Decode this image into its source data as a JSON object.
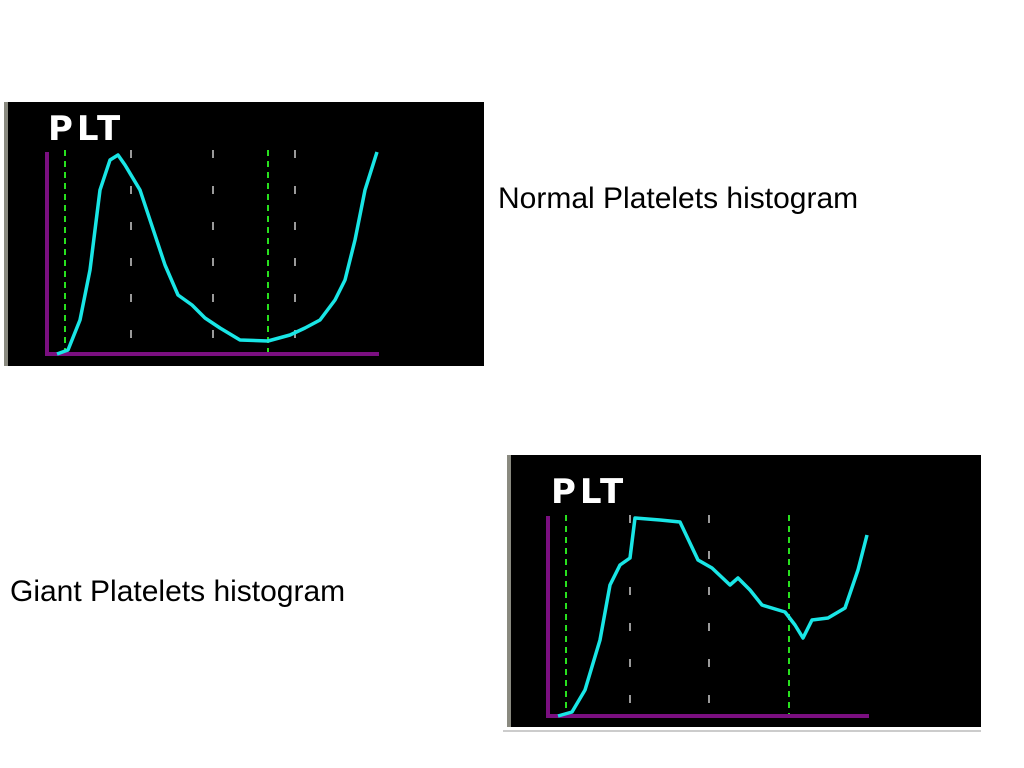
{
  "panels": [
    {
      "label": "PLT",
      "caption": "Normal Platelets histogram"
    },
    {
      "label": "PLT",
      "caption": "Giant Platelets histogram"
    }
  ]
}
